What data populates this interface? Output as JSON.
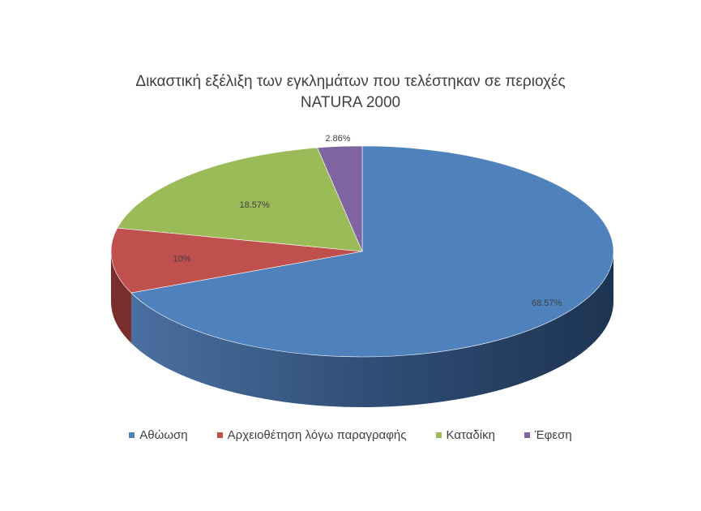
{
  "chart_data": {
    "type": "pie",
    "title_lines": [
      "Δικαστική εξέλιξη των εγκλημάτων που τελέστηκαν σε περιοχές",
      "NATURA 2000"
    ],
    "legend_position": "bottom",
    "three_d": true,
    "slices": [
      {
        "label": "Αθώωση",
        "value": 68.57,
        "data_label": "68.57%",
        "color": "#4f81bd",
        "side_color": "#2c4a70"
      },
      {
        "label": "Αρχειοθέτηση λόγω παραγραφής",
        "value": 10,
        "data_label": "10%",
        "color": "#c0504d",
        "side_color": "#7a2e2c"
      },
      {
        "label": "Καταδίκη",
        "value": 18.57,
        "data_label": "18.57%",
        "color": "#9bbb59",
        "side_color": "#5e7434"
      },
      {
        "label": "Έφεση",
        "value": 2.86,
        "data_label": "2.86%",
        "color": "#8064a2",
        "side_color": "#4d3b63"
      }
    ]
  }
}
